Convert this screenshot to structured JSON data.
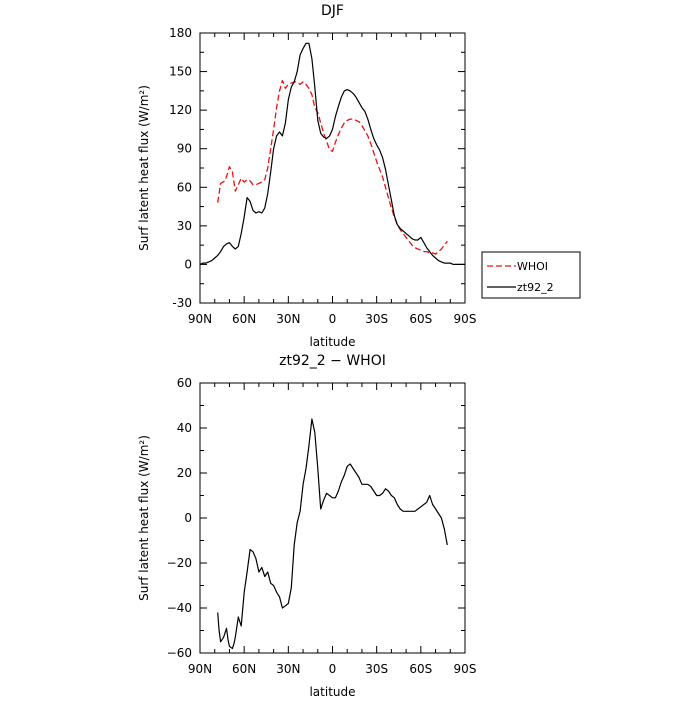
{
  "chart_data": [
    {
      "type": "line",
      "title": "DJF",
      "xlabel": "latitude",
      "ylabel": "Surf latent heat flux (W/m²)",
      "ylim": [
        -30,
        180
      ],
      "xlim": [
        90,
        -90
      ],
      "x_ticks": [
        90,
        60,
        30,
        0,
        -30,
        -60,
        -90
      ],
      "x_tick_labels": [
        "90N",
        "60N",
        "30N",
        "0",
        "30S",
        "60S",
        "90S"
      ],
      "y_ticks": [
        -30,
        0,
        30,
        60,
        90,
        120,
        150,
        180
      ],
      "y_tick_labels": [
        "-30",
        "0",
        "30",
        "60",
        "90",
        "120",
        "150",
        "180"
      ],
      "legend_position": "right",
      "series": [
        {
          "name": "WHOI",
          "color": "#ee1111",
          "dash": "dashed",
          "x": [
            78,
            76,
            73,
            71,
            70,
            68,
            66,
            64,
            62,
            60,
            58,
            56,
            54,
            52,
            50,
            48,
            46,
            44,
            42,
            40,
            38,
            36,
            34,
            32,
            30,
            28,
            26,
            24,
            22,
            20,
            18,
            16,
            14,
            12,
            10,
            8,
            6,
            4,
            2,
            0,
            -2,
            -4,
            -6,
            -8,
            -10,
            -12,
            -14,
            -16,
            -18,
            -20,
            -22,
            -24,
            -26,
            -28,
            -30,
            -32,
            -34,
            -36,
            -38,
            -40,
            -42,
            -44,
            -46,
            -48,
            -50,
            -52,
            -54,
            -56,
            -58,
            -60,
            -62,
            -64,
            -66,
            -68,
            -70,
            -72,
            -74,
            -76,
            -78
          ],
          "y": [
            48,
            63,
            65,
            72,
            76,
            72,
            57,
            62,
            67,
            64,
            66,
            65,
            62,
            62,
            63,
            64,
            66,
            75,
            90,
            105,
            122,
            135,
            143,
            137,
            140,
            141,
            142,
            142,
            140,
            142,
            140,
            137,
            132,
            122,
            118,
            110,
            102,
            96,
            89,
            88,
            95,
            101,
            106,
            110,
            112,
            113,
            113,
            112,
            111,
            108,
            104,
            100,
            94,
            87,
            80,
            74,
            68,
            60,
            52,
            44,
            37,
            31,
            27,
            24,
            21,
            18,
            15,
            13,
            12,
            11,
            10,
            10,
            9,
            9,
            8,
            10,
            12,
            15,
            18
          ]
        },
        {
          "name": "zt92_2",
          "color": "#000000",
          "dash": "solid",
          "x": [
            90,
            88,
            86,
            84,
            82,
            80,
            78,
            76,
            74,
            72,
            70,
            68,
            66,
            64,
            62,
            60,
            58,
            56,
            54,
            52,
            50,
            48,
            46,
            44,
            42,
            40,
            38,
            36,
            34,
            32,
            30,
            28,
            26,
            24,
            22,
            20,
            18,
            16,
            14,
            12,
            10,
            8,
            6,
            4,
            2,
            0,
            -2,
            -4,
            -6,
            -8,
            -10,
            -12,
            -14,
            -16,
            -18,
            -20,
            -22,
            -24,
            -26,
            -28,
            -30,
            -32,
            -34,
            -36,
            -38,
            -40,
            -42,
            -44,
            -46,
            -48,
            -50,
            -52,
            -54,
            -56,
            -58,
            -60,
            -62,
            -64,
            -66,
            -68,
            -70,
            -72,
            -74,
            -76,
            -78,
            -80,
            -82,
            -84,
            -86,
            -88,
            -90
          ],
          "y": [
            0,
            1,
            1,
            2,
            3,
            5,
            7,
            10,
            14,
            16,
            17,
            14,
            12,
            14,
            24,
            37,
            52,
            49,
            42,
            40,
            41,
            40,
            44,
            55,
            72,
            90,
            100,
            103,
            100,
            110,
            128,
            138,
            142,
            150,
            163,
            168,
            172,
            172,
            160,
            138,
            112,
            102,
            99,
            98,
            100,
            105,
            115,
            123,
            130,
            135,
            136,
            135,
            133,
            130,
            126,
            122,
            119,
            113,
            105,
            98,
            93,
            89,
            83,
            74,
            62,
            50,
            38,
            31,
            28,
            26,
            24,
            22,
            20,
            19,
            19,
            21,
            17,
            13,
            10,
            7,
            5,
            3,
            2,
            1,
            1,
            1,
            0,
            0,
            0,
            0,
            0
          ]
        }
      ]
    },
    {
      "type": "line",
      "title": "zt92_2 − WHOI",
      "xlabel": "latitude",
      "ylabel": "Surf latent heat flux (W/m²)",
      "ylim": [
        -60,
        60
      ],
      "xlim": [
        90,
        -90
      ],
      "x_ticks": [
        90,
        60,
        30,
        0,
        -30,
        -60,
        -90
      ],
      "x_tick_labels": [
        "90N",
        "60N",
        "30N",
        "0",
        "30S",
        "60S",
        "90S"
      ],
      "y_ticks": [
        -60,
        -40,
        -20,
        0,
        20,
        40,
        60
      ],
      "y_tick_labels": [
        "−60",
        "−40",
        "−20",
        "0",
        "20",
        "40",
        "60"
      ],
      "series": [
        {
          "color": "#000000",
          "dash": "solid",
          "x": [
            78,
            77,
            76,
            74,
            72,
            71,
            70,
            68,
            67,
            66,
            64,
            62,
            60,
            58,
            56,
            54,
            52,
            50,
            48,
            46,
            44,
            42,
            40,
            38,
            36,
            34,
            32,
            30,
            28,
            26,
            24,
            22,
            20,
            18,
            16,
            14,
            12,
            10,
            8,
            6,
            4,
            2,
            0,
            -2,
            -4,
            -6,
            -8,
            -10,
            -12,
            -14,
            -16,
            -18,
            -20,
            -22,
            -24,
            -26,
            -28,
            -30,
            -32,
            -34,
            -36,
            -38,
            -40,
            -42,
            -44,
            -46,
            -48,
            -50,
            -52,
            -54,
            -56,
            -58,
            -60,
            -62,
            -64,
            -66,
            -68,
            -70,
            -72,
            -74,
            -76,
            -78
          ],
          "y": [
            -42,
            -50,
            -55,
            -53,
            -49,
            -54,
            -57,
            -58,
            -56,
            -53,
            -44,
            -48,
            -33,
            -24,
            -14,
            -15,
            -18,
            -24,
            -22,
            -26,
            -24,
            -29,
            -30,
            -33,
            -35,
            -40,
            -39,
            -38,
            -31,
            -12,
            -2,
            3,
            15,
            22,
            32,
            44,
            38,
            22,
            4,
            8,
            11,
            10,
            9,
            9,
            12,
            16,
            19,
            23,
            24,
            22,
            20,
            18,
            15,
            15,
            15,
            14,
            12,
            10,
            10,
            11,
            13,
            12,
            10,
            9,
            6,
            4,
            3,
            3,
            3,
            3,
            3,
            4,
            5,
            6,
            7,
            10,
            6,
            4,
            2,
            0,
            -5,
            -12
          ]
        }
      ]
    }
  ]
}
